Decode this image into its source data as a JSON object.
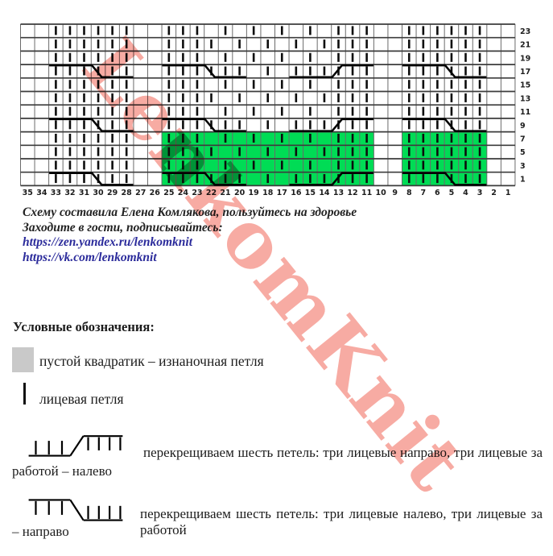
{
  "watermark": {
    "text": "LenkomKnit",
    "color": "#f7aba3"
  },
  "colors": {
    "green": "#00dc55",
    "link": "#2b2b9b",
    "text": "#1c1c1c",
    "legend_square": "#c9c9c9",
    "grid_line": "#6b6b6b",
    "grid_line_heavy": "#3c3c3c",
    "bar": "#0d0d0d",
    "cable": "#000000"
  },
  "credits": {
    "line1": "Схему составила Елена Комлякова, пользуйтесь на здоровье",
    "line2": "Заходите в гости, подписывайтесь:",
    "link1": "https://zen.yandex.ru/lenkomknit",
    "link2": "https://vk.com/lenkomknit"
  },
  "legend": {
    "heading": "Условные обозначения:",
    "purl_label": "пустой квадратик – изнаночная петля",
    "knit_label": "лицевая петля",
    "cable_left_line1": "перекрещиваем шесть  петель: три лицевые направо, три лицевые за",
    "cable_left_line2": "работой – налево",
    "cable_right_line1": "перекрещиваем шесть петель: три лицевые налево, три лицевые  за работой",
    "cable_right_line2": "– направо"
  },
  "chart_data": {
    "type": "knitting-chart",
    "columns": 35,
    "row_labels": [
      23,
      21,
      19,
      17,
      15,
      13,
      11,
      9,
      7,
      5,
      3,
      1
    ],
    "bottom_labels": [
      35,
      34,
      33,
      32,
      31,
      30,
      29,
      28,
      27,
      26,
      25,
      24,
      23,
      22,
      21,
      20,
      19,
      18,
      17,
      16,
      15,
      14,
      13,
      12,
      11,
      10,
      9,
      8,
      7,
      6,
      5,
      4,
      3,
      2,
      1
    ],
    "always_knit_col_ranges": [
      [
        33,
        28
      ],
      [
        25,
        23
      ],
      [
        13,
        11
      ],
      [
        8,
        3
      ]
    ],
    "seed_bar_cols_odd_rows": [
      21,
      19,
      17,
      15
    ],
    "seed_bar_cols_even_rows": [
      22,
      20,
      18,
      16,
      14
    ],
    "seed_odd_rows": [
      23,
      19,
      15,
      11,
      7,
      3
    ],
    "seed_even_rows": [
      21,
      13,
      5
    ],
    "cable_rows": [
      17,
      9,
      1
    ],
    "cable_row_extra_bar_cols": [
      22,
      21,
      20,
      18,
      16,
      15,
      14
    ],
    "cables": [
      {
        "from_col": 33,
        "to_col": 28,
        "cross": "right"
      },
      {
        "from_col": 25,
        "to_col": 20,
        "cross": "right"
      },
      {
        "from_col": 16,
        "to_col": 11,
        "cross": "left"
      },
      {
        "from_col": 8,
        "to_col": 3,
        "cross": "right"
      }
    ],
    "green_blocks": [
      {
        "from_col": 25,
        "to_col": 11,
        "from_row": 7,
        "to_row": 1
      },
      {
        "from_col": 8,
        "to_col": 3,
        "from_row": 7,
        "to_row": 1
      }
    ]
  }
}
